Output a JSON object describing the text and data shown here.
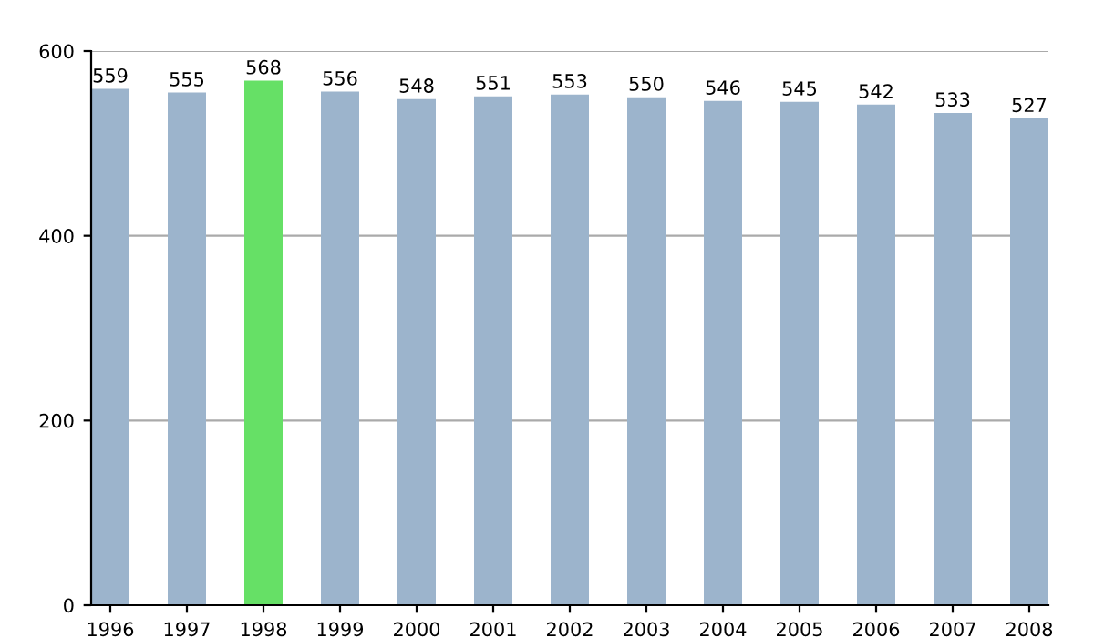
{
  "chart_data": {
    "type": "bar",
    "categories": [
      "1996",
      "1997",
      "1998",
      "1999",
      "2000",
      "2001",
      "2002",
      "2003",
      "2004",
      "2005",
      "2006",
      "2007",
      "2008"
    ],
    "values": [
      559,
      555,
      568,
      556,
      548,
      551,
      553,
      550,
      546,
      545,
      542,
      533,
      527
    ],
    "colors": [
      "#9cb4cc",
      "#9cb4cc",
      "#66e066",
      "#9cb4cc",
      "#9cb4cc",
      "#9cb4cc",
      "#9cb4cc",
      "#9cb4cc",
      "#9cb4cc",
      "#9cb4cc",
      "#9cb4cc",
      "#9cb4cc",
      "#9cb4cc"
    ],
    "ylim": [
      0,
      600
    ],
    "yticks": [
      0,
      200,
      400,
      600
    ],
    "grid": "y",
    "data_labels": true
  }
}
